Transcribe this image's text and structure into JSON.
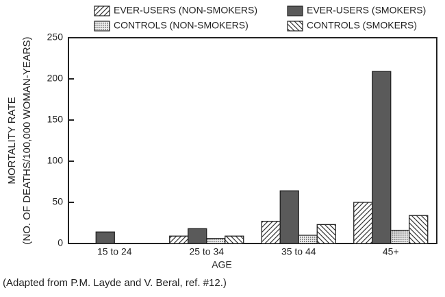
{
  "chart_data": {
    "type": "bar",
    "categories": [
      "15 to 24",
      "25 to 34",
      "35 to 44",
      "45+"
    ],
    "series": [
      {
        "name": "EVER-USERS (NON-SMOKERS)",
        "color": "#333333",
        "pattern": "diagonal",
        "values": [
          null,
          9,
          27,
          50
        ]
      },
      {
        "name": "EVER-USERS (SMOKERS)",
        "color": "#5a5a5a",
        "pattern": "solid",
        "values": [
          14,
          18,
          64,
          209
        ]
      },
      {
        "name": "CONTROLS (NON-SMOKERS)",
        "color": "#333333",
        "pattern": "dots",
        "values": [
          null,
          6,
          10,
          16
        ]
      },
      {
        "name": "CONTROLS (SMOKERS)",
        "color": "#333333",
        "pattern": "back-diagonal",
        "values": [
          null,
          9,
          23,
          34
        ]
      }
    ],
    "ylabel": [
      "MORTALITY RATE",
      "(NO. OF DEATHS/100,000 WOMAN-YEARS)"
    ],
    "xlabel": "AGE",
    "ylim": [
      0,
      250
    ],
    "yticks": [
      0,
      50,
      100,
      150,
      200,
      250
    ],
    "grid": false,
    "note": "(Adapted from P.M. Layde and V. Beral, ref. #12.)"
  }
}
